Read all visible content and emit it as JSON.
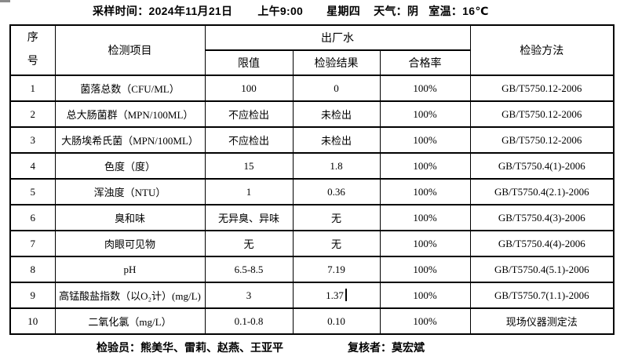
{
  "header": {
    "sampling_time": "采样时间：2024年11月21日",
    "time_of_day": "上午9:00",
    "weekday": "星期四",
    "weather": "天气：阴",
    "room_temp": "室温：16℃"
  },
  "table": {
    "col_seq": "序\n号",
    "col_item": "检测项目",
    "col_group": "出厂水",
    "col_limit": "限值",
    "col_result": "检验结果",
    "col_pass": "合格率",
    "col_method": "检验方法",
    "rows": [
      {
        "no": "1",
        "item": "菌落总数（CFU/ML）",
        "limit": "100",
        "result": "0",
        "pass": "100%",
        "method": "GB/T5750.12-2006"
      },
      {
        "no": "2",
        "item": "总大肠菌群（MPN/100ML）",
        "limit": "不应检出",
        "result": "未检出",
        "pass": "100%",
        "method": "GB/T5750.12-2006"
      },
      {
        "no": "3",
        "item": "大肠埃希氏菌（MPN/100ML）",
        "limit": "不应检出",
        "result": "未检出",
        "pass": "100%",
        "method": "GB/T5750.12-2006"
      },
      {
        "no": "4",
        "item": "色度（度）",
        "limit": "15",
        "result": "1.8",
        "pass": "100%",
        "method": "GB/T5750.4(1)-2006"
      },
      {
        "no": "5",
        "item": "浑浊度（NTU）",
        "limit": "1",
        "result": "0.36",
        "pass": "100%",
        "method": "GB/T5750.4(2.1)-2006"
      },
      {
        "no": "6",
        "item": "臭和味",
        "limit": "无异臭、异味",
        "result": "无",
        "pass": "100%",
        "method": "GB/T5750.4(3)-2006"
      },
      {
        "no": "7",
        "item": "肉眼可见物",
        "limit": "无",
        "result": "无",
        "pass": "100%",
        "method": "GB/T5750.4(4)-2006"
      },
      {
        "no": "8",
        "item": "pH",
        "limit": "6.5-8.5",
        "result": "7.19",
        "pass": "100%",
        "method": "GB/T5750.4(5.1)-2006"
      },
      {
        "no": "9",
        "item": "高锰酸盐指数（以O₂计）(mg/L)",
        "limit": "3",
        "result": "1.37",
        "pass": "100%",
        "method": "GB/T5750.7(1.1)-2006"
      },
      {
        "no": "10",
        "item": "二氧化氯（mg/L）",
        "limit": "0.1-0.8",
        "result": "0.10",
        "pass": "100%",
        "method": "现场仪器测定法"
      }
    ]
  },
  "footer": {
    "inspectors": "检验员：熊美华、雷莉、赵燕、王亚平",
    "reviewer": "复核者：莫宏斌"
  },
  "colors": {
    "text": "#000000",
    "background": "#ffffff",
    "border": "#000000",
    "artifact_gray": "#8a8a8a"
  }
}
